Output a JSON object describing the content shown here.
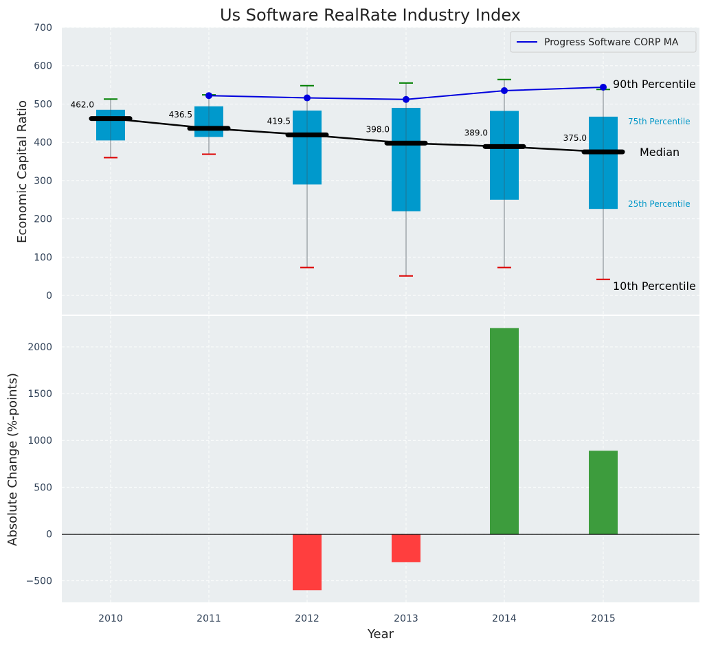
{
  "chart_data": [
    {
      "type": "box",
      "title": "Us Software RealRate Industry Index",
      "xlabel": "",
      "ylabel": "Economic Capital Ratio",
      "ylim": [
        -50,
        700
      ],
      "yticks": [
        0,
        100,
        200,
        300,
        400,
        500,
        600,
        700
      ],
      "categories": [
        "2010",
        "2011",
        "2012",
        "2013",
        "2014",
        "2015"
      ],
      "boxes": [
        {
          "year": "2010",
          "p10": 360,
          "p25": 405,
          "median": 462.0,
          "p75": 485,
          "p90": 513,
          "median_label": "462.0"
        },
        {
          "year": "2011",
          "p10": 369,
          "p25": 414,
          "median": 436.5,
          "p75": 494,
          "p90": 524,
          "median_label": "436.5"
        },
        {
          "year": "2012",
          "p10": 73,
          "p25": 290,
          "median": 419.5,
          "p75": 483,
          "p90": 548,
          "median_label": "419.5"
        },
        {
          "year": "2013",
          "p10": 51,
          "p25": 220,
          "median": 398.0,
          "p75": 490,
          "p90": 555,
          "median_label": "398.0"
        },
        {
          "year": "2014",
          "p10": 73,
          "p25": 250,
          "median": 389.0,
          "p75": 482,
          "p90": 564,
          "median_label": "389.0"
        },
        {
          "year": "2015",
          "p10": 42,
          "p25": 226,
          "median": 375.0,
          "p75": 467,
          "p90": 538,
          "median_label": "375.0"
        }
      ],
      "series": [
        {
          "name": "Progress Software CORP MA",
          "x": [
            "2011",
            "2012",
            "2013",
            "2014",
            "2015"
          ],
          "values": [
            522,
            516,
            512,
            535,
            544
          ],
          "color": "#0000dd"
        }
      ],
      "annotations": {
        "p90": "90th Percentile",
        "p75": "75th Percentile",
        "median": "Median",
        "p25": "25th Percentile",
        "p10": "10th Percentile"
      },
      "legend": "top-right",
      "colors": {
        "box": "#0099cc",
        "median": "#000000",
        "whisker_top": "#008000",
        "whisker_bottom": "#dd0000",
        "background": "#eaeef0"
      }
    },
    {
      "type": "bar",
      "xlabel": "Year",
      "ylabel": "Absolute Change (%-points)",
      "ylim": [
        -730,
        2330
      ],
      "yticks": [
        -500,
        0,
        500,
        1000,
        1500,
        2000
      ],
      "ytick_labels": [
        "−500",
        "0",
        "500",
        "1000",
        "1500",
        "2000"
      ],
      "categories": [
        "2010",
        "2011",
        "2012",
        "2013",
        "2014",
        "2015"
      ],
      "values": [
        0,
        0,
        -600,
        -300,
        2200,
        890
      ],
      "colors": {
        "positive": "#3d9c3d",
        "negative": "#ff3e3e"
      }
    }
  ]
}
